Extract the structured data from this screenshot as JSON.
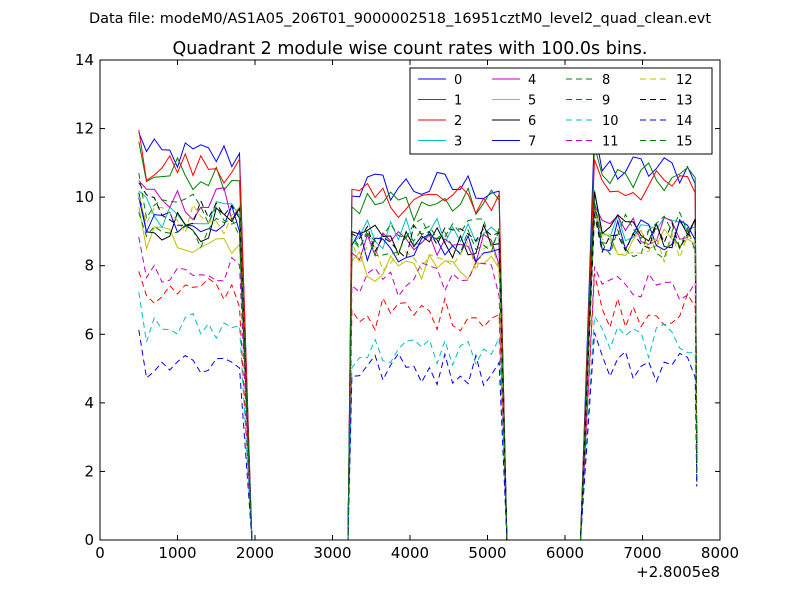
{
  "chart_data": {
    "type": "line",
    "suptitle": "Data file: modeM0/AS1A05_206T01_9000002518_16951cztM0_level2_quad_clean.evt",
    "title": "Quadrant 2 module wise count rates with 100.0s bins.",
    "xlabel": "",
    "ylabel": "",
    "xlim": [
      0,
      8000
    ],
    "ylim": [
      0,
      14
    ],
    "x_offset_label": "+2.8005e8",
    "xticks": [
      0,
      1000,
      2000,
      3000,
      4000,
      5000,
      6000,
      7000,
      8000
    ],
    "yticks": [
      0,
      2,
      4,
      6,
      8,
      10,
      12,
      14
    ],
    "legend": {
      "position": "top-right",
      "columns": 4
    },
    "segments": [
      {
        "x_start": 500,
        "x_end": 1800,
        "fall_to": 1960
      },
      {
        "rise_from": 3200,
        "x_start": 3250,
        "x_end": 5100,
        "fall_to": 5250
      },
      {
        "rise_from": 6200,
        "x_start": 6380,
        "x_end": 7660,
        "fall_to": 7700
      }
    ],
    "bin_width": 100,
    "series": [
      {
        "name": "0",
        "color": "#0000ff",
        "style": "solid",
        "levels": [
          11.2,
          10.3,
          10.8
        ]
      },
      {
        "name": "1",
        "color": "#008000",
        "style": "solid",
        "levels": [
          10.7,
          9.8,
          10.5
        ]
      },
      {
        "name": "2",
        "color": "#ff0000",
        "style": "solid",
        "levels": [
          10.9,
          9.9,
          10.3
        ]
      },
      {
        "name": "3",
        "color": "#00bfbf",
        "style": "solid",
        "levels": [
          9.6,
          8.9,
          9.2
        ]
      },
      {
        "name": "4",
        "color": "#bf00bf",
        "style": "solid",
        "levels": [
          9.8,
          8.5,
          9.0
        ]
      },
      {
        "name": "5",
        "color": "#bfbf00",
        "style": "solid",
        "levels": [
          8.8,
          8.0,
          8.6
        ]
      },
      {
        "name": "6",
        "color": "#000000",
        "style": "solid",
        "levels": [
          9.2,
          8.7,
          9.0
        ]
      },
      {
        "name": "7",
        "color": "#0000ff",
        "style": "solid",
        "levels": [
          9.4,
          8.6,
          8.9
        ]
      },
      {
        "name": "8",
        "color": "#008000",
        "style": "dashed",
        "levels": [
          9.0,
          8.9,
          8.7
        ]
      },
      {
        "name": "9",
        "color": "#ff0000",
        "style": "dashed",
        "levels": [
          7.2,
          6.6,
          6.7
        ]
      },
      {
        "name": "10",
        "color": "#00bfbf",
        "style": "dashed",
        "levels": [
          6.2,
          5.5,
          5.8
        ]
      },
      {
        "name": "11",
        "color": "#bf00bf",
        "style": "dashed",
        "levels": [
          7.8,
          7.6,
          7.3
        ]
      },
      {
        "name": "12",
        "color": "#bfbf00",
        "style": "dashed",
        "levels": [
          9.3,
          8.3,
          8.5
        ]
      },
      {
        "name": "13",
        "color": "#000000",
        "style": "dashed",
        "levels": [
          9.6,
          8.7,
          8.9
        ]
      },
      {
        "name": "14",
        "color": "#0000ff",
        "style": "dashed",
        "levels": [
          5.2,
          5.0,
          5.1
        ]
      },
      {
        "name": "15",
        "color": "#008000",
        "style": "dashed",
        "levels": [
          9.7,
          8.8,
          9.1
        ]
      }
    ]
  }
}
